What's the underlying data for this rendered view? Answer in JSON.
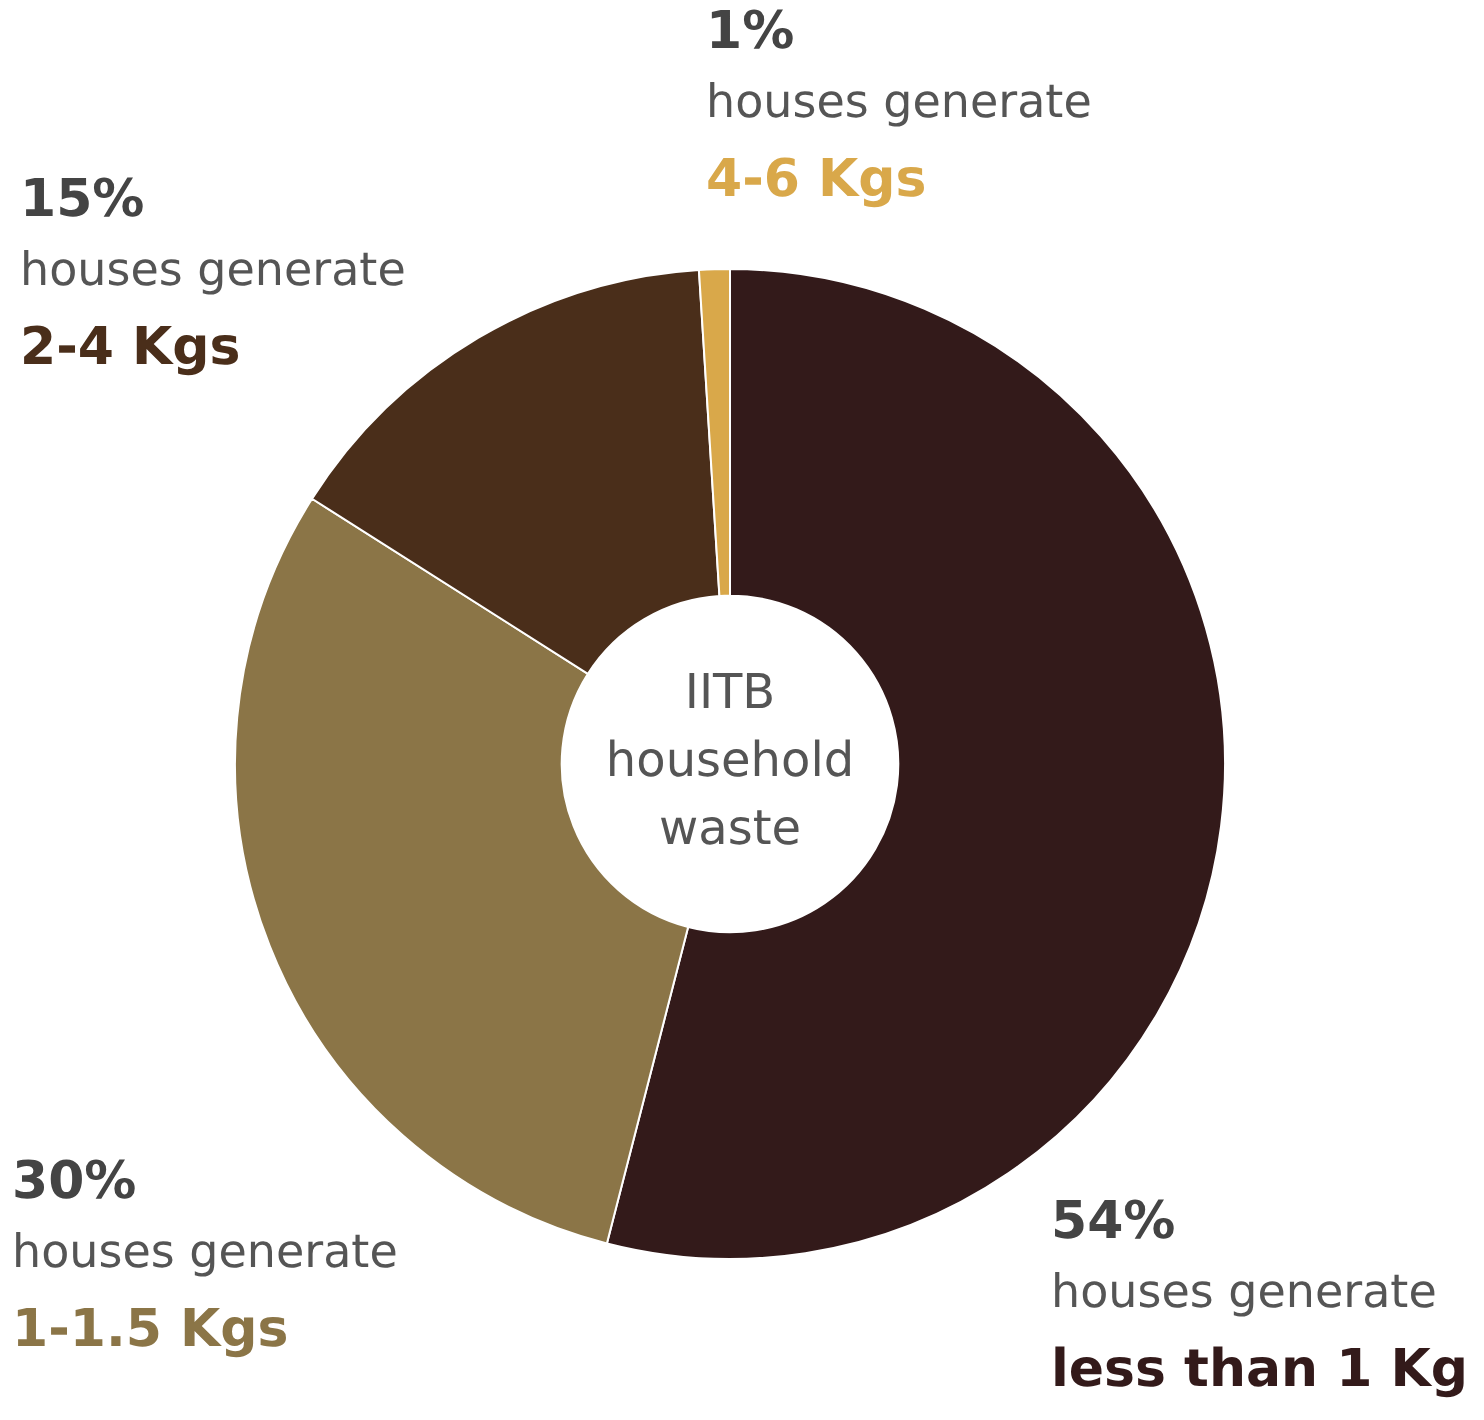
{
  "chart_data": {
    "type": "donut",
    "title": "IITB household waste",
    "categories": [
      "houses generate\nless than 1 Kg",
      "houses generate\n1-1.5 Kgs",
      "houses generate\n2-4 Kgs",
      "houses generate\n4-6 Kgs"
    ],
    "values": [
      54,
      30,
      15,
      1
    ],
    "colors": [
      "#331a1a",
      "#8b7547",
      "#4a2e1a",
      "#d9a84a"
    ],
    "value_labels": [
      "54%",
      "30%",
      "15%",
      "1%"
    ],
    "legend": false
  }
}
